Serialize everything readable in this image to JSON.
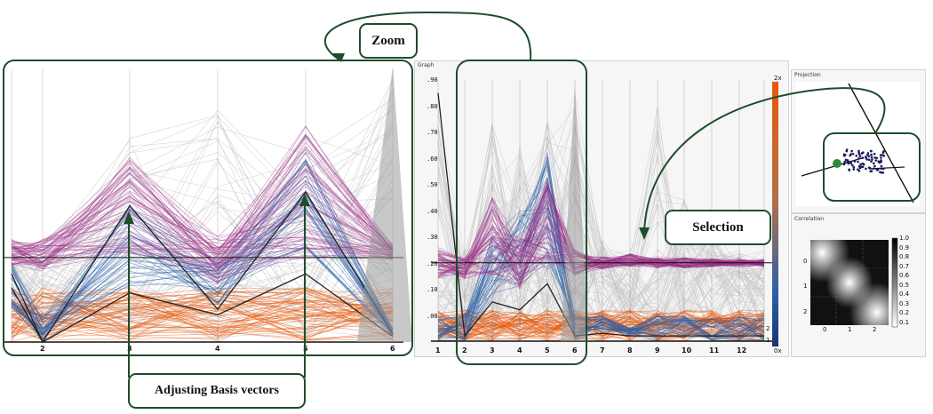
{
  "callouts": {
    "zoom": "Zoom",
    "selection": "Selection",
    "adjusting": "Adjusting Basis vectors"
  },
  "graph_panel": {
    "title": "Graph",
    "y_ticks": [
      ".90",
      ".80",
      ".70",
      ".60",
      ".50",
      ".40",
      ".30",
      ".20",
      ".10",
      ".00"
    ],
    "x_ticks": [
      "1",
      "2",
      "3",
      "4",
      "5",
      "6",
      "7",
      "8",
      "9",
      "10",
      "11",
      "12"
    ],
    "colorbar_top": "2x",
    "colorbar_mid": "2",
    "colorbar_low": "1",
    "colorbar_bottom": "0x"
  },
  "zoom_view": {
    "x_ticks": [
      "2",
      "3",
      "4",
      "5",
      "6"
    ]
  },
  "projection_panel": {
    "title": "Projection"
  },
  "correlation_panel": {
    "title": "Correlation",
    "y_ticks": [
      "0",
      "1",
      "2"
    ],
    "x_ticks": [
      "0",
      "1",
      "2"
    ],
    "scale_ticks": [
      "1.0",
      "0.9",
      "0.8",
      "0.7",
      "0.6",
      "0.5",
      "0.4",
      "0.3",
      "0.2",
      "0.1"
    ]
  },
  "colors": {
    "callout_border": "#1e4d2b",
    "purple": "#9a2f86",
    "blue": "#2c5fa8",
    "orange": "#e8590c",
    "gray": "#bdbdbd"
  }
}
